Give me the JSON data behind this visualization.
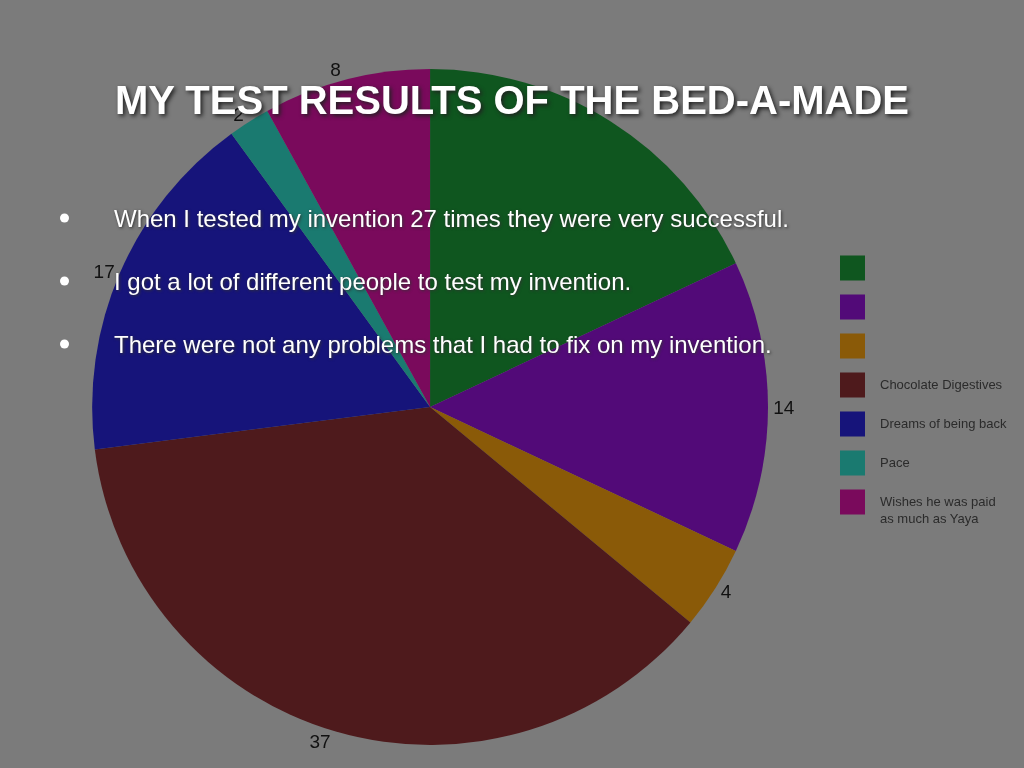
{
  "chart_data": {
    "type": "pie",
    "title": "MY TEST RESULTS OF THE BED-A-MADE",
    "categories": [
      null,
      null,
      null,
      "Chocolate Digestives",
      "Dreams of being back",
      "Pace",
      "Wishes he was paid as much as Yaya"
    ],
    "values": [
      18,
      14,
      4,
      37,
      17,
      2,
      8
    ],
    "colors": [
      "#0f561f",
      "#520a78",
      "#8a5a08",
      "#4e1a1c",
      "#16147a",
      "#1a7a70",
      "#7a0a5c"
    ],
    "value_labels": [
      null,
      "14",
      "4",
      "37",
      "17",
      "2",
      "8"
    ],
    "legend": "right",
    "annotations": [
      "When I tested my invention 27 times they were very successful.",
      "I got a lot of different people to test my invention.",
      "There were not any problems that I had to fix on my invention."
    ]
  }
}
